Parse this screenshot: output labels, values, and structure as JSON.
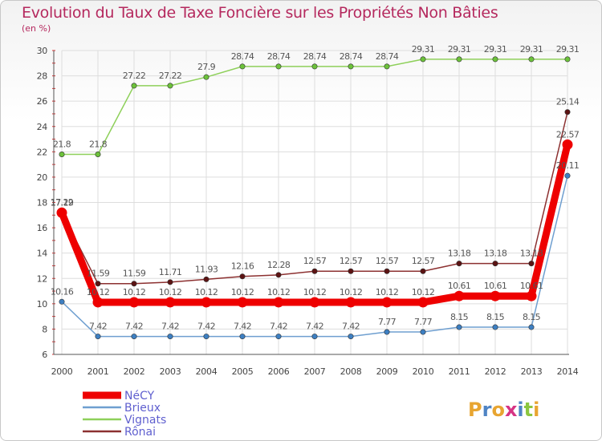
{
  "chart_data": {
    "type": "line",
    "title": "Evolution du Taux de Taxe Foncière sur les Propriétés Non Bâties",
    "ylabel": "(en %)",
    "xlabel": "",
    "ylim": [
      6,
      30
    ],
    "yticks": [
      6,
      8,
      10,
      12,
      14,
      16,
      18,
      20,
      22,
      24,
      26,
      28,
      30
    ],
    "categories": [
      "2000",
      "2001",
      "2002",
      "2003",
      "2004",
      "2005",
      "2006",
      "2007",
      "2008",
      "2009",
      "2010",
      "2011",
      "2012",
      "2013",
      "2014"
    ],
    "series": [
      {
        "name": "Vignats",
        "color": "#8ed05a",
        "marker": "#6cc23a",
        "values": [
          21.8,
          21.8,
          27.22,
          27.22,
          27.9,
          28.74,
          28.74,
          28.74,
          28.74,
          28.74,
          29.31,
          29.31,
          29.31,
          29.31,
          29.31
        ],
        "labels": [
          "21.8",
          "21.8",
          "27.22",
          "27.22",
          "27.9",
          "28.74",
          "28.74",
          "28.74",
          "28.74",
          "28.74",
          "29.31",
          "29.31",
          "29.31",
          "29.31",
          "29.31"
        ]
      },
      {
        "name": "Brieux",
        "color": "#6f9fd0",
        "marker": "#3d7fc2",
        "values": [
          10.16,
          7.42,
          7.42,
          7.42,
          7.42,
          7.42,
          7.42,
          7.42,
          7.42,
          7.77,
          7.77,
          8.15,
          8.15,
          8.15,
          20.11
        ],
        "labels": [
          "10.16",
          "7.42",
          "7.42",
          "7.42",
          "7.42",
          "7.42",
          "7.42",
          "7.42",
          "7.42",
          "7.77",
          "7.77",
          "8.15",
          "8.15",
          "8.15",
          "20.11"
        ]
      },
      {
        "name": "Rônai",
        "color": "#8c3030",
        "marker": "#5c1313",
        "values": [
          17.22,
          11.59,
          11.59,
          11.71,
          11.93,
          12.16,
          12.28,
          12.57,
          12.57,
          12.57,
          12.57,
          13.18,
          13.18,
          13.18,
          25.14
        ],
        "labels": [
          "17.22",
          "11.59",
          "11.59",
          "11.71",
          "11.93",
          "12.16",
          "12.28",
          "12.57",
          "12.57",
          "12.57",
          "12.57",
          "13.18",
          "13.18",
          "13.18",
          "25.14"
        ]
      },
      {
        "name": "NéCY",
        "color": "#ee0000",
        "marker": "#ee0000",
        "values": [
          17.19,
          10.12,
          10.12,
          10.12,
          10.12,
          10.12,
          10.12,
          10.12,
          10.12,
          10.12,
          10.12,
          10.61,
          10.61,
          10.61,
          22.57
        ],
        "labels": [
          "17.19",
          "10.12",
          "10.12",
          "10.12",
          "10.12",
          "10.12",
          "10.12",
          "10.12",
          "10.12",
          "10.12",
          "10.12",
          "10.61",
          "10.61",
          "10.61",
          "22.57"
        ]
      }
    ]
  },
  "legend": [
    "NéCY",
    "Brieux",
    "Vignats",
    "Rônai"
  ],
  "legend_colors": [
    "#ee0000",
    "#6f9fd0",
    "#8ed05a",
    "#8c3030"
  ],
  "legend_text_color": "#5f5fcf",
  "logo": {
    "letters": [
      "P",
      "r",
      "o",
      "x",
      "i",
      "t",
      "i"
    ],
    "colors": [
      "#e8a531",
      "#4f84c4",
      "#e8a531",
      "#d63384",
      "#4f84c4",
      "#8cc63f",
      "#e8a531"
    ]
  }
}
